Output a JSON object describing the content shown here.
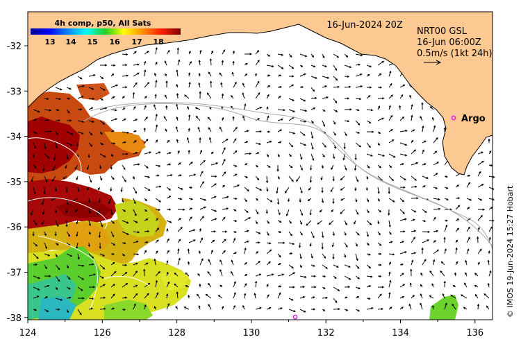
{
  "colorbar": {
    "title": "4h comp, p50, All Sats",
    "labels": [
      "13",
      "14",
      "15",
      "16",
      "17",
      "18"
    ]
  },
  "timestamp": "16-Jun-2024 20Z",
  "current_legend": {
    "product": "NRT00 GSL",
    "time": "16-Jun 06:00Z",
    "scale": "0.5m/s (1kt 24h)"
  },
  "argo_label": "Argo",
  "credit": "© IMOS 19-Jun-2024 15:27 Hobart",
  "axes": {
    "x_ticks": [
      "124",
      "126",
      "128",
      "130",
      "132",
      "134",
      "136"
    ],
    "y_ticks": [
      "-32",
      "-33",
      "-34",
      "-35",
      "-36",
      "-37",
      "-38"
    ]
  },
  "colors": {
    "land": "#fdc993",
    "argo": "#e020e0",
    "warm": "#a00000",
    "coast_outline": "#000000"
  }
}
